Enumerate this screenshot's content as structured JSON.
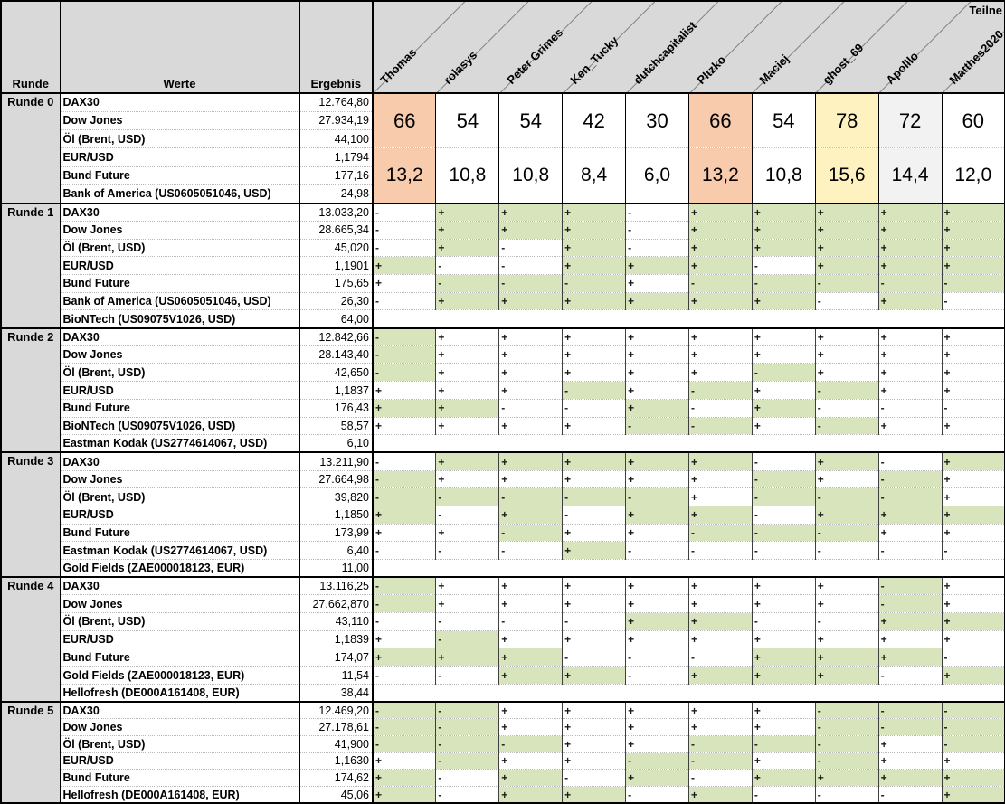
{
  "header": {
    "runde": "Runde",
    "werte": "Werte",
    "ergebnis": "Ergebnis",
    "teilnehmer_label": "Teilne"
  },
  "participants": [
    "Thomas",
    "rolasys",
    "Peter Grimes",
    "Ken_Tucky",
    "dutchcapitalist",
    "PItzko",
    "Maciej",
    "ghost_69",
    "Apolllo",
    "Matthes2020"
  ],
  "colors": {
    "green": "#d7e4bc",
    "peach": "#f8cbad",
    "yellow": "#fdf2c0",
    "lightgray": "#f2f2f2",
    "header_bg": "#d9d9d9"
  },
  "runde0": {
    "label": "Runde 0",
    "rows": [
      {
        "name": "DAX30",
        "value": "12.764,80"
      },
      {
        "name": "Dow Jones",
        "value": "27.934,19"
      },
      {
        "name": "Öl (Brent, USD)",
        "value": "44,100"
      },
      {
        "name": "EUR/USD",
        "value": "1,1794"
      },
      {
        "name": "Bund Future",
        "value": "177,16"
      },
      {
        "name": "Bank of America (US0605051046, USD)",
        "value": "24,98"
      }
    ],
    "score_top": [
      "66",
      "54",
      "54",
      "42",
      "30",
      "66",
      "54",
      "78",
      "72",
      "60"
    ],
    "score_bottom": [
      "13,2",
      "10,8",
      "10,8",
      "8,4",
      "6,0",
      "13,2",
      "10,8",
      "15,6",
      "14,4",
      "12,0"
    ],
    "cell_colors": [
      "peach",
      "white",
      "white",
      "white",
      "white",
      "peach",
      "white",
      "yellow",
      "gray",
      "white"
    ]
  },
  "rounds": [
    {
      "label": "Runde 1",
      "rows": [
        {
          "name": "DAX30",
          "value": "13.033,20",
          "bets": [
            "-w",
            "+g",
            "+g",
            "+g",
            "-w",
            "+g",
            "+g",
            "+g",
            "+g",
            "+g"
          ]
        },
        {
          "name": "Dow Jones",
          "value": "28.665,34",
          "bets": [
            "-w",
            "+g",
            "+g",
            "+g",
            "-w",
            "+g",
            "+g",
            "+g",
            "+g",
            "+g"
          ]
        },
        {
          "name": "Öl (Brent, USD)",
          "value": "45,020",
          "bets": [
            "-w",
            "+g",
            "-w",
            "+g",
            "-w",
            "+g",
            "+g",
            "+g",
            "+g",
            "+g"
          ]
        },
        {
          "name": "EUR/USD",
          "value": "1,1901",
          "bets": [
            "+g",
            "-w",
            "-w",
            "+g",
            "+g",
            "+g",
            "-w",
            "+g",
            "+g",
            "+g"
          ]
        },
        {
          "name": "Bund Future",
          "value": "175,65",
          "bets": [
            "+w",
            "-g",
            "-g",
            "-g",
            "+w",
            "-g",
            "-g",
            "-g",
            "-g",
            "-g"
          ]
        },
        {
          "name": "Bank of America (US0605051046, USD)",
          "value": "26,30",
          "bets": [
            "-w",
            "+g",
            "+g",
            "+g",
            "+g",
            "+g",
            "+g",
            "-w",
            "+g",
            "-w"
          ]
        },
        {
          "name": "BioNTech (US09075V1026, USD)",
          "value": "64,00",
          "bets": null
        }
      ]
    },
    {
      "label": "Runde 2",
      "rows": [
        {
          "name": "DAX30",
          "value": "12.842,66",
          "bets": [
            "-g",
            "+w",
            "+w",
            "+w",
            "+w",
            "+w",
            "+w",
            "+w",
            "+w",
            "+w"
          ]
        },
        {
          "name": "Dow Jones",
          "value": "28.143,40",
          "bets": [
            "-g",
            "+w",
            "+w",
            "+w",
            "+w",
            "+w",
            "+w",
            "+w",
            "+w",
            "+w"
          ]
        },
        {
          "name": "Öl (Brent, USD)",
          "value": "42,650",
          "bets": [
            "-g",
            "+w",
            "+w",
            "+w",
            "+w",
            "+w",
            "-g",
            "+w",
            "+w",
            "+w"
          ]
        },
        {
          "name": "EUR/USD",
          "value": "1,1837",
          "bets": [
            "+w",
            "+w",
            "+w",
            "-g",
            "+w",
            "-g",
            "+w",
            "-g",
            "+w",
            "+w"
          ]
        },
        {
          "name": "Bund Future",
          "value": "176,43",
          "bets": [
            "+g",
            "+g",
            "-w",
            "-w",
            "+g",
            "-w",
            "+g",
            "-w",
            "-w",
            "-w"
          ]
        },
        {
          "name": "BioNTech (US09075V1026, USD)",
          "value": "58,57",
          "bets": [
            "+w",
            "+w",
            "+w",
            "+w",
            "-g",
            "-g",
            "+w",
            "-g",
            "+w",
            "+w"
          ]
        },
        {
          "name": "Eastman Kodak (US2774614067, USD)",
          "value": "6,10",
          "bets": null
        }
      ]
    },
    {
      "label": "Runde 3",
      "rows": [
        {
          "name": "DAX30",
          "value": "13.211,90",
          "bets": [
            "-w",
            "+g",
            "+g",
            "+g",
            "+g",
            "+g",
            "-w",
            "+g",
            "-w",
            "+g"
          ]
        },
        {
          "name": "Dow Jones",
          "value": "27.664,98",
          "bets": [
            "-g",
            "+w",
            "+w",
            "+w",
            "+w",
            "+w",
            "-g",
            "+w",
            "-g",
            "+w"
          ]
        },
        {
          "name": "Öl (Brent, USD)",
          "value": "39,820",
          "bets": [
            "-g",
            "-g",
            "-g",
            "-g",
            "-g",
            "+w",
            "-g",
            "-g",
            "-g",
            "+w"
          ]
        },
        {
          "name": "EUR/USD",
          "value": "1,1850",
          "bets": [
            "+g",
            "-w",
            "+g",
            "-w",
            "+g",
            "+g",
            "-w",
            "+g",
            "+g",
            "+g"
          ]
        },
        {
          "name": "Bund Future",
          "value": "173,99",
          "bets": [
            "+w",
            "+w",
            "-g",
            "+w",
            "+w",
            "-g",
            "-g",
            "-g",
            "+w",
            "+w"
          ]
        },
        {
          "name": "Eastman Kodak (US2774614067, USD)",
          "value": "6,40",
          "bets": [
            "-w",
            "-w",
            "-w",
            "+g",
            "-w",
            "-w",
            "-w",
            "-w",
            "-w",
            "-w"
          ]
        },
        {
          "name": "Gold Fields (ZAE000018123, EUR)",
          "value": "11,00",
          "bets": null
        }
      ]
    },
    {
      "label": "Runde 4",
      "rows": [
        {
          "name": "DAX30",
          "value": "13.116,25",
          "bets": [
            "-g",
            "+w",
            "+w",
            "+w",
            "+w",
            "+w",
            "+w",
            "+w",
            "-g",
            "+w"
          ]
        },
        {
          "name": "Dow Jones",
          "value": "27.662,870",
          "bets": [
            "-g",
            "+w",
            "+w",
            "+w",
            "+w",
            "+w",
            "+w",
            "+w",
            "-g",
            "+w"
          ]
        },
        {
          "name": "Öl (Brent, USD)",
          "value": "43,110",
          "bets": [
            "-w",
            "-w",
            "-w",
            "-w",
            "+g",
            "+g",
            "-w",
            "-w",
            "+g",
            "+g"
          ]
        },
        {
          "name": "EUR/USD",
          "value": "1,1839",
          "bets": [
            "+w",
            "-g",
            "+w",
            "+w",
            "+w",
            "+w",
            "+w",
            "+w",
            "+w",
            "+w"
          ]
        },
        {
          "name": "Bund Future",
          "value": "174,07",
          "bets": [
            "+g",
            "+g",
            "+g",
            "-w",
            "-w",
            "-w",
            "+g",
            "+g",
            "+g",
            "-w"
          ]
        },
        {
          "name": "Gold Fields (ZAE000018123, EUR)",
          "value": "11,54",
          "bets": [
            "-w",
            "-w",
            "+g",
            "+g",
            "-w",
            "+g",
            "+g",
            "+g",
            "-w",
            "+g"
          ]
        },
        {
          "name": "Hellofresh (DE000A161408, EUR)",
          "value": "38,44",
          "bets": null
        }
      ]
    },
    {
      "label": "Runde 5",
      "rows": [
        {
          "name": "DAX30",
          "value": "12.469,20",
          "bets": [
            "-g",
            "-g",
            "+w",
            "+w",
            "+w",
            "+w",
            "+w",
            "-g",
            "-g",
            "-g"
          ]
        },
        {
          "name": "Dow Jones",
          "value": "27.178,61",
          "bets": [
            "-g",
            "-g",
            "+w",
            "+w",
            "+w",
            "+w",
            "+w",
            "-g",
            "-g",
            "-g"
          ]
        },
        {
          "name": "Öl (Brent, USD)",
          "value": "41,900",
          "bets": [
            "-g",
            "-g",
            "-g",
            "+w",
            "+w",
            "-g",
            "-g",
            "-g",
            "+w",
            "-g"
          ]
        },
        {
          "name": "EUR/USD",
          "value": "1,1630",
          "bets": [
            "+w",
            "-g",
            "+w",
            "+w",
            "-g",
            "-g",
            "+w",
            "-g",
            "+w",
            "+w"
          ]
        },
        {
          "name": "Bund Future",
          "value": "174,62",
          "bets": [
            "+g",
            "-w",
            "+g",
            "-w",
            "+g",
            "-w",
            "+g",
            "+g",
            "+g",
            "+g"
          ]
        },
        {
          "name": "Hellofresh (DE000A161408, EUR)",
          "value": "45,06",
          "bets": [
            "+g",
            "-w",
            "+g",
            "+g",
            "-w",
            "+g",
            "-w",
            "-w",
            "-w",
            "+g"
          ]
        }
      ]
    }
  ]
}
